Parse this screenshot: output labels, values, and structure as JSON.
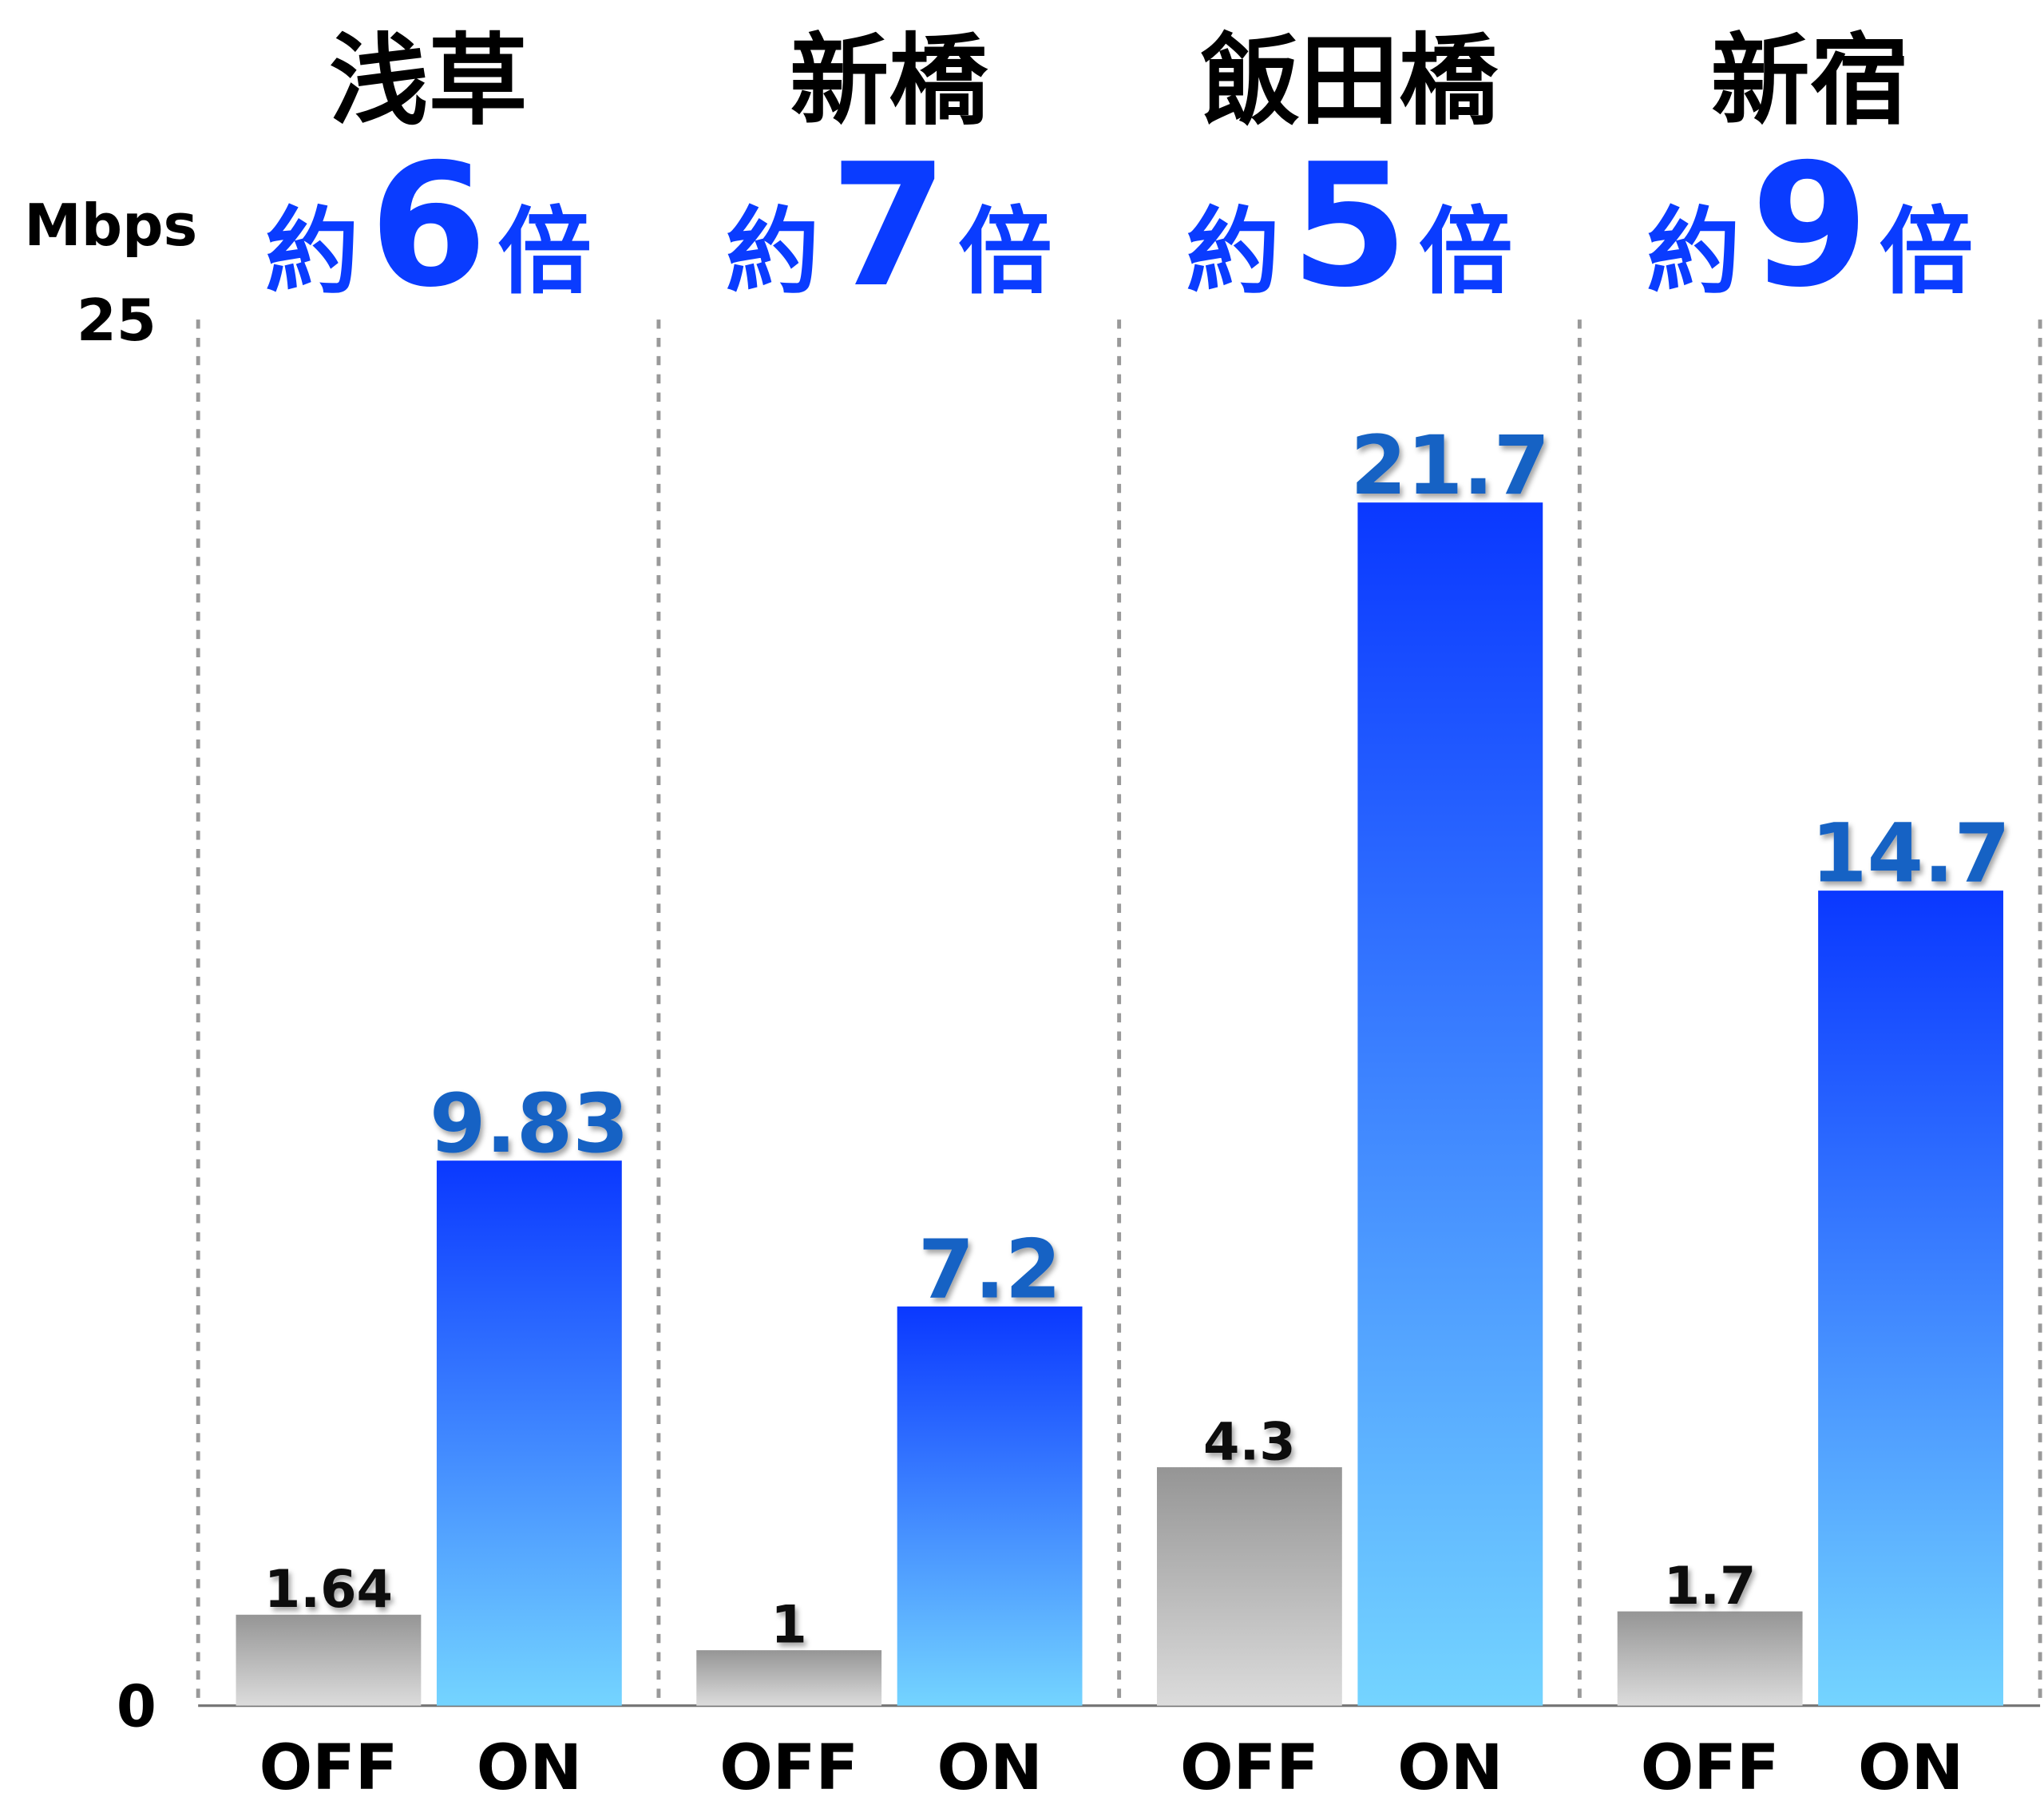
{
  "chart_data": {
    "type": "bar",
    "y_label": "Mbps",
    "categories": [
      "浅草",
      "新橋",
      "飯田橋",
      "新宿"
    ],
    "annotations": [
      {
        "prefix": "約",
        "multiplier": 6,
        "suffix": "倍"
      },
      {
        "prefix": "約",
        "multiplier": 7,
        "suffix": "倍"
      },
      {
        "prefix": "約",
        "multiplier": 5,
        "suffix": "倍"
      },
      {
        "prefix": "約",
        "multiplier": 9,
        "suffix": "倍"
      }
    ],
    "series": [
      {
        "name": "OFF",
        "color": "#959595",
        "values": [
          1.64,
          1,
          4.3,
          1.7
        ]
      },
      {
        "name": "ON",
        "color": "#0a38ff",
        "values": [
          9.83,
          7.2,
          21.7,
          14.7
        ]
      }
    ],
    "ylim": [
      0,
      25
    ],
    "yticks": [
      0,
      25
    ]
  }
}
